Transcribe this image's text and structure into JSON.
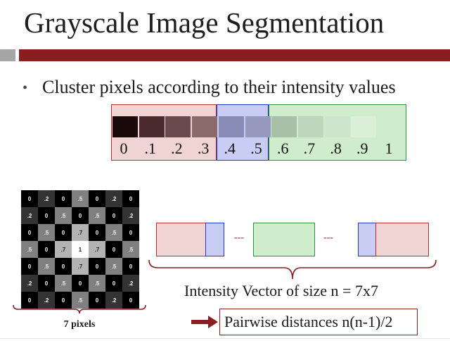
{
  "slide": {
    "title": "Grayscale Image Segmentation",
    "bullet": "Cluster pixels according to their intensity values"
  },
  "colors": {
    "title_bar": "#8a1d1e",
    "title_bar_accent": "#a6a6a6",
    "cluster_low": "#f0d4d4",
    "cluster_mid": "#c9cdf3",
    "cluster_high": "#cfeccc"
  },
  "intensity_scale": {
    "labels": [
      "0",
      ".1",
      ".2",
      ".3",
      ".4",
      ".5",
      ".6",
      ".7",
      ".8",
      ".9",
      "1"
    ],
    "swatch_colors": [
      "#1b0a0a",
      "#4a2a2c",
      "#6a4a4c",
      "#8a6a6b",
      "#8a8cb8",
      "#9698bd",
      "#a8c0a8",
      "#bed6be",
      "#cce5cc",
      "#dbefd9",
      "#cfeccc"
    ]
  },
  "pixel_grid": {
    "caption": "7 pixels",
    "rows": [
      [
        "0",
        ".2",
        "0",
        ".5",
        "0",
        ".2",
        "0"
      ],
      [
        ".2",
        "0",
        ".5",
        "0",
        ".5",
        "0",
        ".2"
      ],
      [
        "0",
        ".5",
        "0",
        ".7",
        "0",
        ".5",
        "0"
      ],
      [
        ".5",
        "0",
        ".7",
        "1",
        ".7",
        "0",
        ".5"
      ],
      [
        "0",
        ".5",
        "0",
        ".7",
        "0",
        ".5",
        "0"
      ],
      [
        ".2",
        "0",
        ".5",
        "0",
        ".5",
        "0",
        ".2"
      ],
      [
        "0",
        ".2",
        "0",
        ".5",
        "0",
        ".2",
        "0"
      ]
    ]
  },
  "vector": {
    "ellipsis_left": "---",
    "ellipsis_right": "---",
    "caption": "Intensity Vector of size n = 7x7"
  },
  "pairwise": {
    "label": "Pairwise distances n(n-1)/2"
  }
}
